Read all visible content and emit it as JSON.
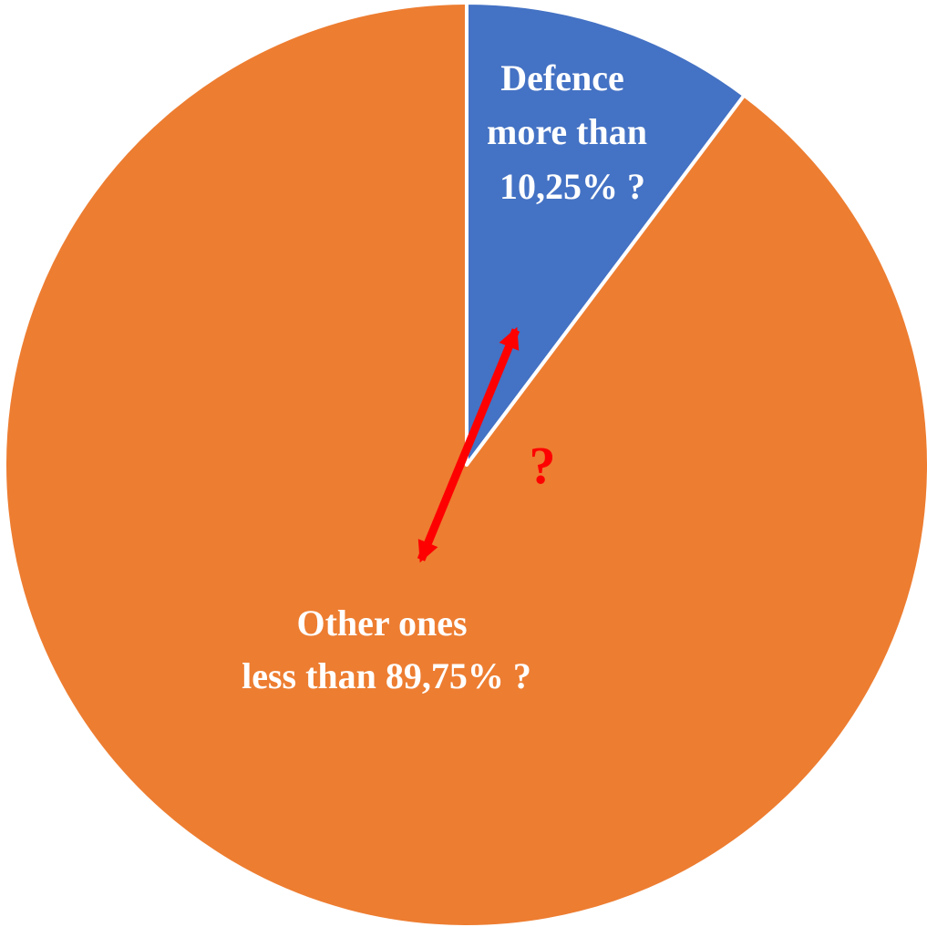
{
  "chart_data": {
    "type": "pie",
    "title": "",
    "slices": [
      {
        "label_lines": [
          "Defence",
          "more than",
          "10,25% ?"
        ],
        "value": 10.25,
        "color": "#4472C4"
      },
      {
        "label_lines": [
          "Other ones",
          "less than 89,75% ?"
        ],
        "value": 89.75,
        "color": "#ED7D31"
      }
    ],
    "start_angle": "12 o'clock",
    "direction": "clockwise",
    "separator_color": "#ffffff",
    "annotations": [
      {
        "kind": "double-arrow",
        "color": "#FF0000",
        "text": "?",
        "between": "Defence and Other ones"
      }
    ]
  }
}
